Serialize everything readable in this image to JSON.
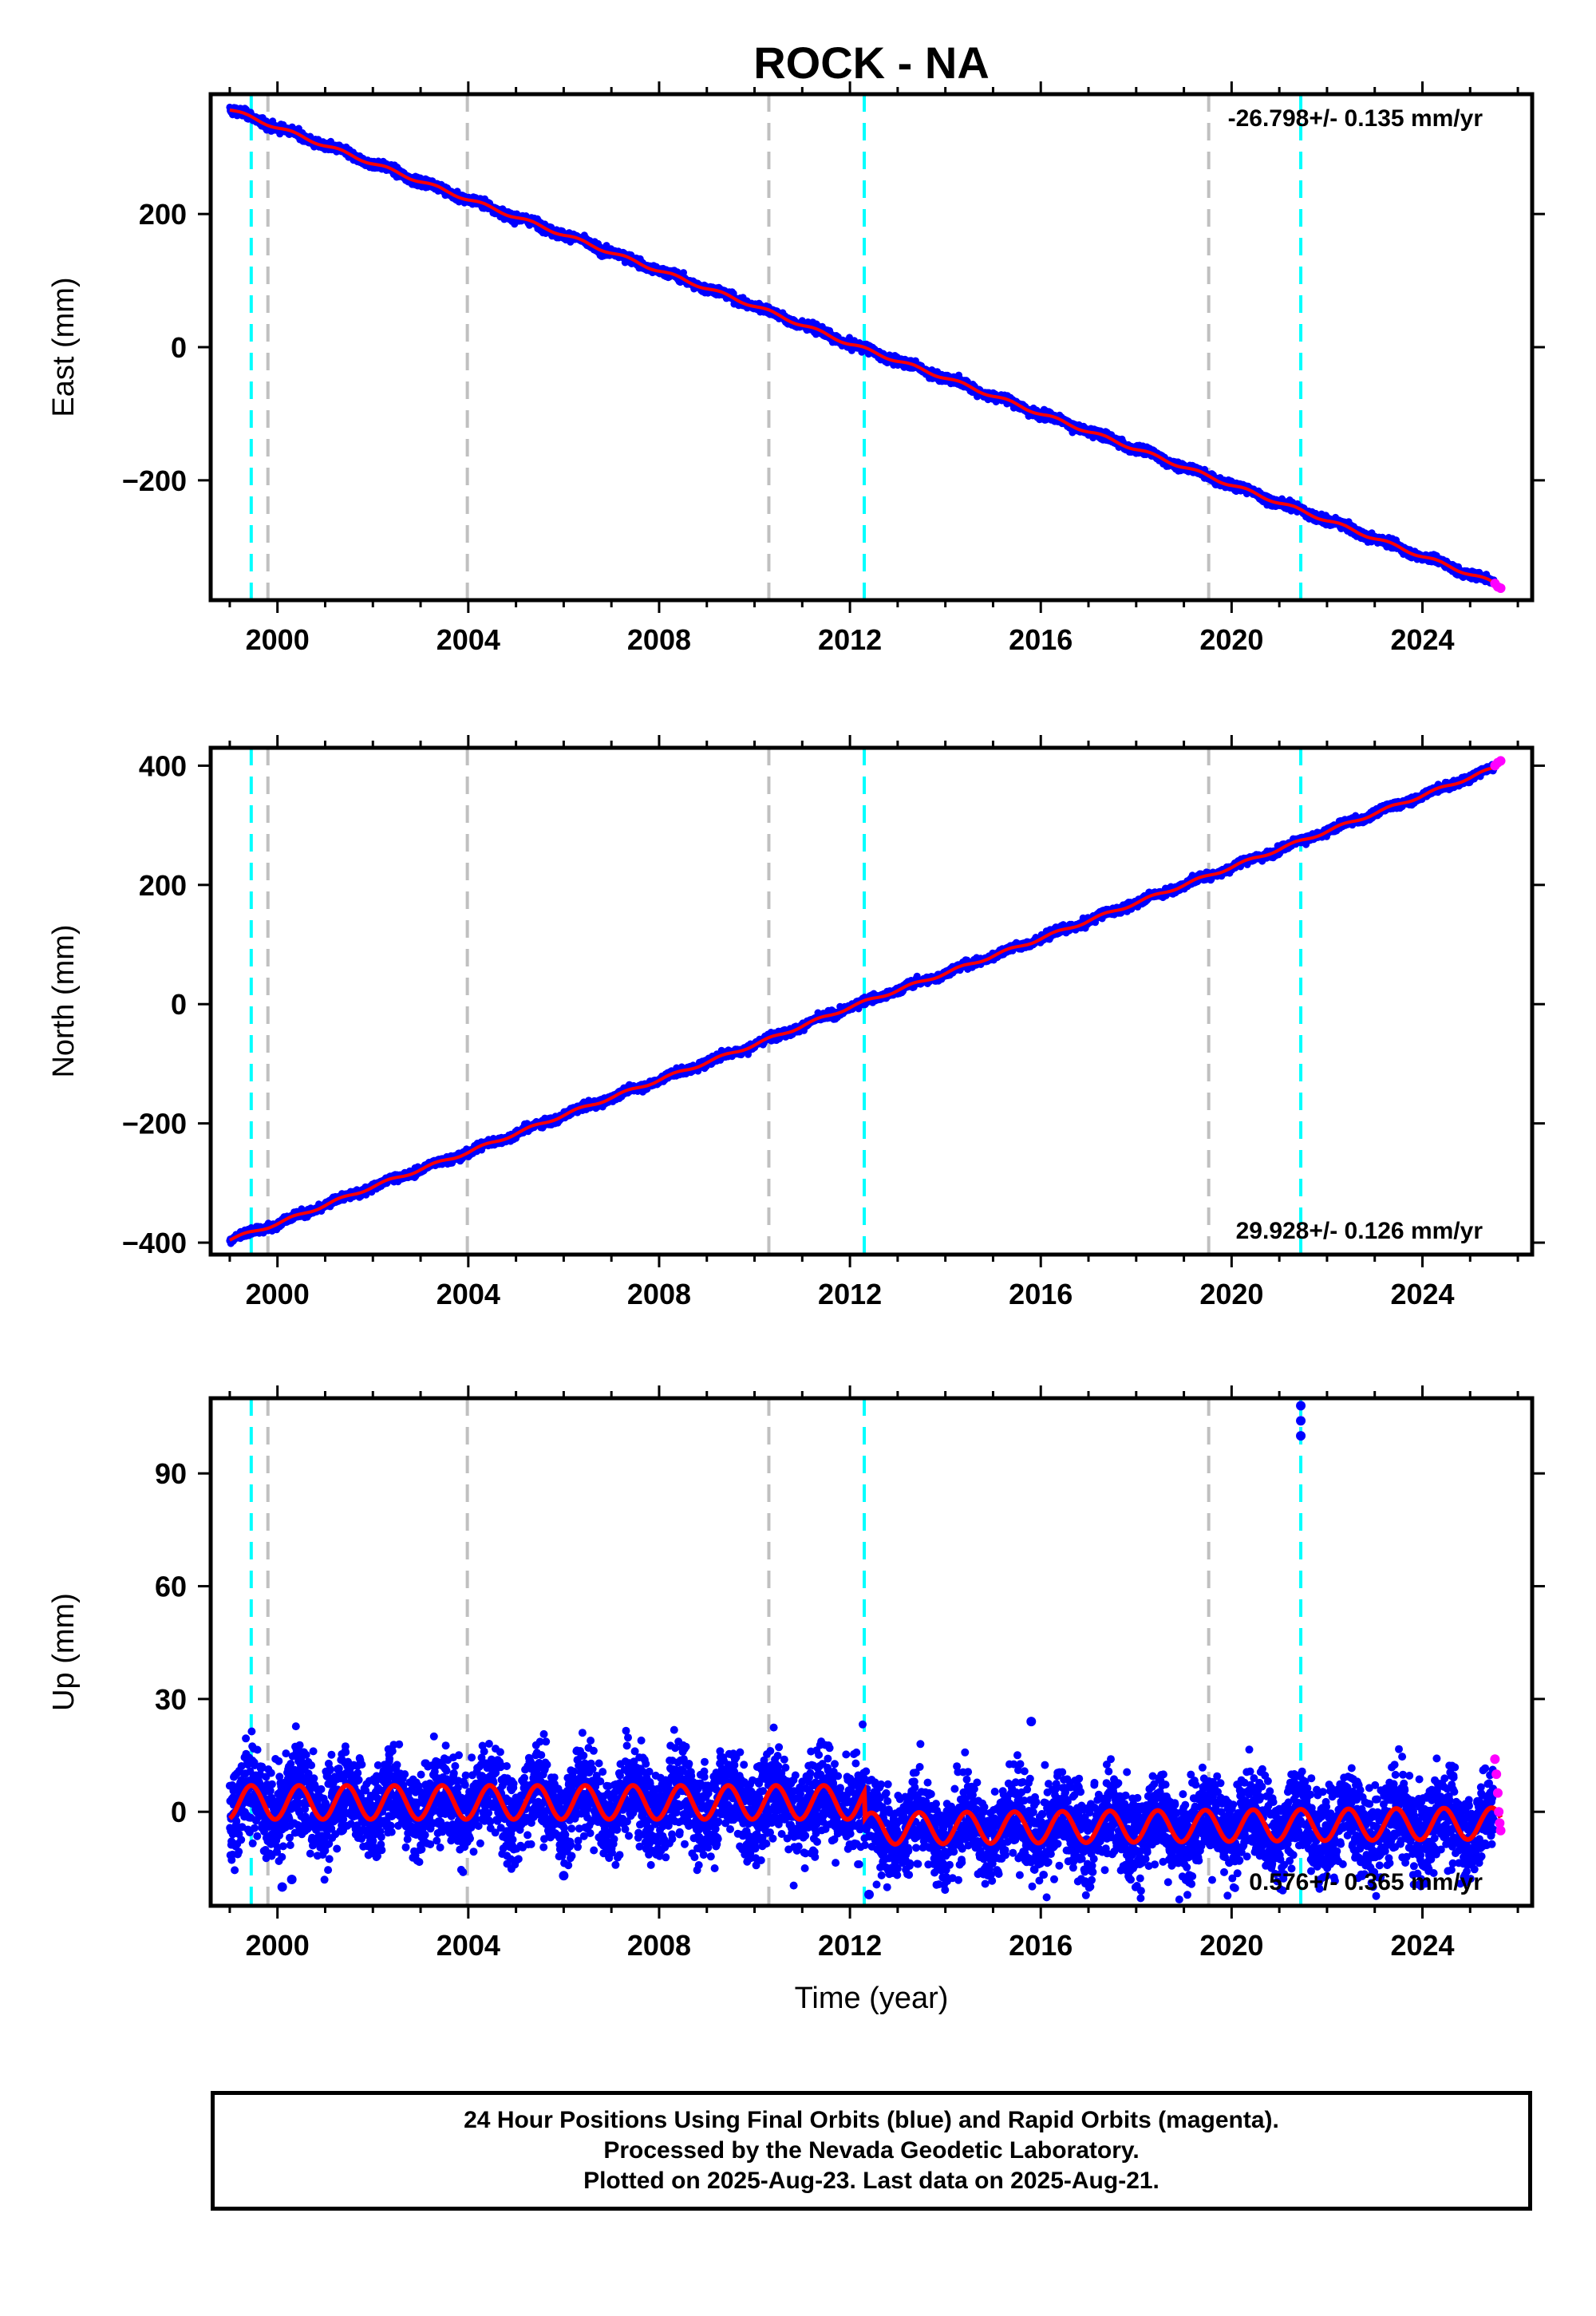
{
  "colors": {
    "final_orbits": "#0000ff",
    "rapid_orbits": "#ff00ff",
    "model": "#ff0000",
    "equipment_change": "#00ffff",
    "other_event": "#c0c0c0",
    "frame": "#000000"
  },
  "footer": {
    "line1": "24 Hour Positions Using Final Orbits (blue) and Rapid Orbits (magenta).",
    "line2": "Processed by the Nevada Geodetic Laboratory.",
    "line3": "Plotted on 2025-Aug-23. Last data on 2025-Aug-21."
  },
  "chart_data": {
    "type": "scatter",
    "title": "ROCK - NA",
    "xlabel": "Time (year)",
    "xlim": [
      1998.6,
      2026.3
    ],
    "x_ticks": [
      2000,
      2004,
      2008,
      2012,
      2016,
      2020,
      2024
    ],
    "x_tick_labels": [
      "2000",
      "2004",
      "2008",
      "2012",
      "2016",
      "2020",
      "2024"
    ],
    "data_start": 1999.0,
    "data_end": 2025.64,
    "rapid_start": 2025.5,
    "event_lines": {
      "cyan": [
        1999.45,
        2012.3,
        2021.45
      ],
      "gray": [
        1999.8,
        2003.98,
        2010.3,
        2019.52
      ]
    },
    "panels": [
      {
        "name": "east",
        "ylabel": "East (mm)",
        "ylim": [
          -380,
          380
        ],
        "y_ticks": [
          -200,
          0,
          200
        ],
        "y_tick_labels": [
          "−200",
          "0",
          "200"
        ],
        "rate_text": "-26.798+/- 0.135 mm/yr",
        "rate_position": "top-right",
        "series": [
          {
            "name": "Final Orbits",
            "values": [
              [
                1999.0,
                357
              ],
              [
                2000.0,
                330
              ],
              [
                2002.0,
                276
              ],
              [
                2004.0,
                222
              ],
              [
                2006.0,
                169
              ],
              [
                2008.0,
                115
              ],
              [
                2010.0,
                62
              ],
              [
                2012.0,
                5
              ],
              [
                2014.0,
                -46
              ],
              [
                2016.0,
                -100
              ],
              [
                2018.0,
                -153
              ],
              [
                2020.0,
                -207
              ],
              [
                2022.0,
                -260
              ],
              [
                2024.0,
                -314
              ],
              [
                2025.64,
                -358
              ]
            ]
          },
          {
            "name": "Rapid Orbits",
            "values": [
              [
                2025.52,
                -355
              ],
              [
                2025.58,
                -360
              ],
              [
                2025.64,
                -362
              ]
            ]
          }
        ]
      },
      {
        "name": "north",
        "ylabel": "North (mm)",
        "ylim": [
          -420,
          430
        ],
        "y_ticks": [
          -400,
          -200,
          0,
          200,
          400
        ],
        "y_tick_labels": [
          "−400",
          "−200",
          "0",
          "200",
          "400"
        ],
        "rate_text": "29.928+/- 0.126 mm/yr",
        "rate_position": "bottom-right",
        "series": [
          {
            "name": "Final Orbits",
            "values": [
              [
                1999.0,
                -395
              ],
              [
                2000.0,
                -368
              ],
              [
                2002.0,
                -306
              ],
              [
                2004.0,
                -248
              ],
              [
                2006.0,
                -186
              ],
              [
                2008.0,
                -127
              ],
              [
                2010.0,
                -68
              ],
              [
                2012.0,
                -5
              ],
              [
                2014.0,
                52
              ],
              [
                2016.0,
                110
              ],
              [
                2018.0,
                170
              ],
              [
                2020.0,
                230
              ],
              [
                2022.0,
                290
              ],
              [
                2024.0,
                350
              ],
              [
                2025.64,
                400
              ]
            ]
          },
          {
            "name": "Rapid Orbits",
            "values": [
              [
                2025.52,
                400
              ],
              [
                2025.58,
                405
              ],
              [
                2025.64,
                408
              ]
            ]
          }
        ]
      },
      {
        "name": "up",
        "ylabel": "Up (mm)",
        "ylim": [
          -25,
          110
        ],
        "y_ticks": [
          0,
          30,
          60,
          90
        ],
        "y_tick_labels": [
          "0",
          "30",
          "60",
          "90"
        ],
        "rate_text": "0.576+/- 0.365 mm/yr",
        "rate_position": "bottom-right",
        "seasonal": {
          "before_2012_3": {
            "mean": 2.5,
            "amplitude": 4.5
          },
          "after_2012_3": {
            "mean": -4.5,
            "amplitude": 4.2
          },
          "mean_trend_per_yr_after": 0.35
        },
        "scatter_sd": 6,
        "outliers": [
          [
            2021.45,
            108
          ],
          [
            2021.45,
            104
          ],
          [
            2021.45,
            100
          ],
          [
            2015.8,
            24
          ],
          [
            2000.1,
            -20
          ],
          [
            2000.3,
            -18
          ],
          [
            2006.0,
            -17
          ],
          [
            2012.4,
            -22
          ]
        ],
        "series": [
          {
            "name": "Final Orbits",
            "values": [
              [
                1999.0,
                2
              ],
              [
                2002.0,
                3
              ],
              [
                2005.0,
                2
              ],
              [
                2008.0,
                3
              ],
              [
                2012.2,
                3
              ],
              [
                2012.35,
                -7
              ],
              [
                2014.0,
                -5
              ],
              [
                2016.0,
                -4
              ],
              [
                2018.0,
                -3
              ],
              [
                2020.0,
                -3
              ],
              [
                2022.0,
                -2
              ],
              [
                2024.0,
                -1
              ],
              [
                2025.5,
                -1
              ]
            ]
          },
          {
            "name": "Rapid Orbits",
            "values": [
              [
                2025.52,
                14
              ],
              [
                2025.55,
                10
              ],
              [
                2025.58,
                5
              ],
              [
                2025.6,
                0
              ],
              [
                2025.62,
                -3
              ],
              [
                2025.64,
                -5
              ]
            ]
          }
        ]
      }
    ]
  }
}
